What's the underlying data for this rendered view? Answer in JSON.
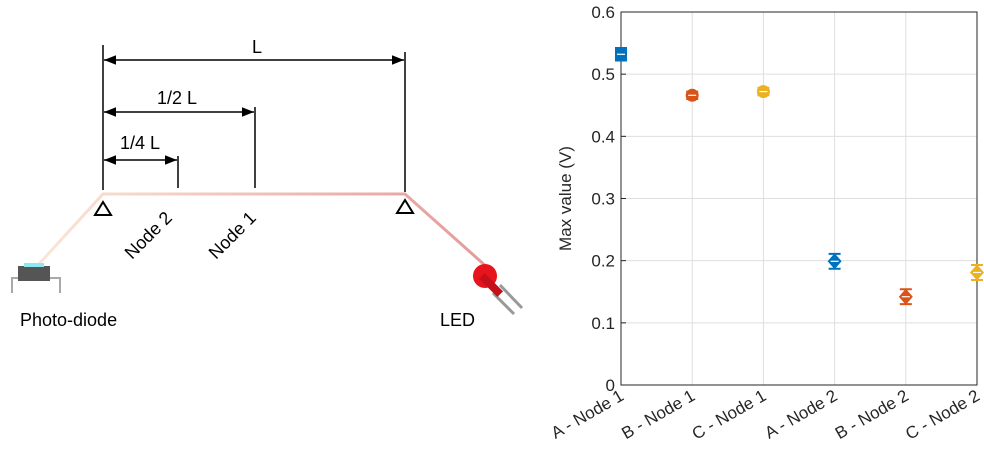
{
  "diagram": {
    "span_full": "L",
    "span_half": "1/2 L",
    "span_quarter": "1/4 L",
    "node_2": "Node 2",
    "node_1": "Node 1",
    "source": "Photo-diode",
    "emitter": "LED"
  },
  "chart_data": {
    "type": "scatter",
    "ylabel": "Max value (V)",
    "categories": [
      "A - Node 1",
      "B - Node 1",
      "C - Node 1",
      "A - Node 2",
      "B - Node 2",
      "C - Node 2"
    ],
    "values": [
      0.532,
      0.466,
      0.472,
      0.199,
      0.142,
      0.181
    ],
    "errors": [
      0.01,
      0.006,
      0.006,
      0.012,
      0.012,
      0.012
    ],
    "colors": [
      "#0072bd",
      "#d95319",
      "#edb120",
      "#0072bd",
      "#d95319",
      "#edb120"
    ],
    "markers": [
      "square",
      "circle",
      "circle",
      "diamond",
      "diamond",
      "diamond"
    ],
    "ylim": [
      0,
      0.6
    ],
    "yticks": [
      0,
      0.1,
      0.2,
      0.3,
      0.4,
      0.5,
      0.6
    ],
    "grid": true
  }
}
